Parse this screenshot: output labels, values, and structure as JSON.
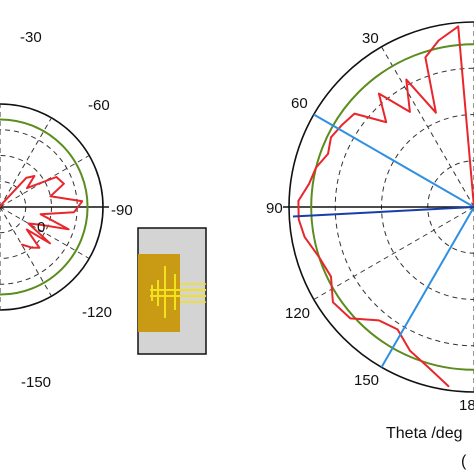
{
  "colors": {
    "ring": "#111111",
    "grid": "#333333",
    "measured": "#e8262b",
    "reference": "#5b8c1e",
    "cut_line": "#2f8fe0",
    "pointer": "#1a3ea8",
    "antenna_body": "#c99a14",
    "antenna_trace": "#f2e21b",
    "antenna_box": "#d4d4d4"
  },
  "chart_data": [
    {
      "type": "polar",
      "position": "left",
      "angle_labels": [
        "-30",
        "-60",
        "-90",
        "-120",
        "-150",
        "0"
      ],
      "grid": true,
      "series": [
        {
          "style": "reference",
          "theta_deg": [
            0,
            30,
            60,
            90,
            120,
            150,
            180,
            210,
            240,
            270,
            300,
            330
          ],
          "r_norm": [
            0.85,
            0.85,
            0.85,
            0.85,
            0.85,
            0.85,
            0.85,
            0.85,
            0.85,
            0.85,
            0.85,
            0.85
          ]
        },
        {
          "style": "measured",
          "theta_deg": [
            5,
            12,
            18,
            25,
            32,
            40,
            48,
            56,
            64,
            70,
            78,
            84,
            90,
            96,
            100,
            106,
            112,
            120
          ],
          "r_norm": [
            0.05,
            0.38,
            0.45,
            0.32,
            0.62,
            0.66,
            0.5,
            0.8,
            0.72,
            0.4,
            0.7,
            0.42,
            0.32,
            0.6,
            0.34,
            0.55,
            0.5,
            0.42
          ]
        }
      ]
    },
    {
      "type": "polar",
      "position": "right",
      "angle_labels": [
        "30",
        "60",
        "90",
        "120",
        "150",
        "18"
      ],
      "grid": true,
      "series": [
        {
          "style": "reference",
          "theta_deg": [
            0,
            30,
            60,
            90,
            120,
            150,
            180,
            210,
            240,
            270,
            300,
            330
          ],
          "r_norm": [
            0.88,
            0.88,
            0.88,
            0.88,
            0.88,
            0.88,
            0.88,
            0.88,
            0.88,
            0.88,
            0.88,
            0.88
          ]
        },
        {
          "style": "measured",
          "theta_deg": [
            5,
            12,
            18,
            22,
            28,
            34,
            40,
            46,
            52,
            58,
            64,
            70,
            76,
            82,
            88,
            94,
            100,
            108,
            116,
            124,
            132,
            140,
            148,
            156,
            164,
            172
          ],
          "r_norm": [
            0.98,
            0.92,
            0.85,
            0.55,
            0.78,
            0.62,
            0.8,
            0.66,
            0.82,
            0.84,
            0.86,
            0.84,
            0.88,
            0.9,
            0.95,
            0.95,
            0.93,
            0.88,
            0.86,
            0.92,
            0.9,
            0.8,
            0.78,
            0.85,
            0.9,
            0.98
          ]
        },
        {
          "style": "cut_line",
          "theta_deg": [
            60,
            150
          ]
        },
        {
          "style": "pointer",
          "theta_deg": [
            93
          ]
        }
      ]
    }
  ],
  "caption": {
    "line1": "Theta /deg",
    "line2": "("
  }
}
